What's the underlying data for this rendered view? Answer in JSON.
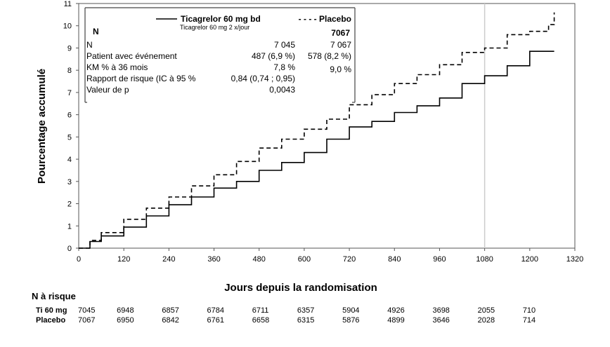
{
  "chart_data": {
    "type": "line",
    "xlabel": "Jours depuis la randomisation",
    "ylabel": "Pourcentage accumulé",
    "xlim": [
      0,
      1320
    ],
    "ylim": [
      0,
      11
    ],
    "xticks": [
      0,
      120,
      240,
      360,
      480,
      600,
      720,
      840,
      960,
      1080,
      1200,
      1320
    ],
    "yticks": [
      0,
      1,
      2,
      3,
      4,
      5,
      6,
      7,
      8,
      9,
      10,
      11
    ],
    "reference_line_x": 1080,
    "series": [
      {
        "name": "Ticagrelor 60 mg bd",
        "style": "solid",
        "x": [
          0,
          30,
          60,
          120,
          180,
          240,
          300,
          360,
          420,
          480,
          540,
          600,
          660,
          720,
          780,
          840,
          900,
          960,
          1020,
          1080,
          1140,
          1200,
          1265
        ],
        "y": [
          0,
          0.3,
          0.55,
          0.95,
          1.45,
          1.95,
          2.3,
          2.7,
          3.0,
          3.5,
          3.85,
          4.3,
          4.9,
          5.45,
          5.7,
          6.1,
          6.4,
          6.75,
          7.4,
          7.75,
          8.2,
          8.85,
          8.85
        ]
      },
      {
        "name": "Placebo",
        "style": "dashed",
        "x": [
          0,
          30,
          60,
          120,
          180,
          240,
          300,
          360,
          420,
          480,
          540,
          600,
          660,
          720,
          780,
          840,
          900,
          960,
          1020,
          1080,
          1140,
          1200,
          1250,
          1265
        ],
        "y": [
          0,
          0.35,
          0.7,
          1.3,
          1.8,
          2.3,
          2.8,
          3.3,
          3.9,
          4.5,
          4.9,
          5.35,
          5.8,
          6.45,
          6.9,
          7.4,
          7.8,
          8.25,
          8.8,
          9.0,
          9.6,
          9.75,
          10.05,
          10.6
        ]
      }
    ],
    "legend": {
      "ticagrelor_label": "Ticagrelor 60 mg bd",
      "ticagrelor_subtitle": "Ticagrelor 60 mg 2 x/jour",
      "placebo_label": "- - - - Placebo",
      "n_header": "N",
      "placebo_n_header": "7067",
      "rows": [
        {
          "label": "N",
          "tica": "7 045",
          "placebo": "7 067"
        },
        {
          "label": "Patient avec événement",
          "tica": "487 (6,9 %)",
          "placebo": "578 (8,2 %)"
        },
        {
          "label": "KM % à 36 mois",
          "tica": "7,8 %",
          "placebo": "9,0 %"
        },
        {
          "label": "Rapport de risque (IC à 95 %",
          "tica": "0,84 (0,74 ; 0,95)",
          "placebo": ""
        },
        {
          "label": "Valeur de p",
          "tica": "0,0043",
          "placebo": ""
        }
      ]
    },
    "risk_table": {
      "title": "N à risque",
      "rows": [
        {
          "label": "Ti 60 mg",
          "values": [
            "7045",
            "6948",
            "6857",
            "6784",
            "6711",
            "6357",
            "5904",
            "4926",
            "3698",
            "2055",
            "710"
          ]
        },
        {
          "label": "Placebo",
          "values": [
            "7067",
            "6950",
            "6842",
            "6761",
            "6658",
            "6315",
            "5876",
            "4899",
            "3646",
            "2028",
            "714"
          ]
        }
      ]
    }
  }
}
